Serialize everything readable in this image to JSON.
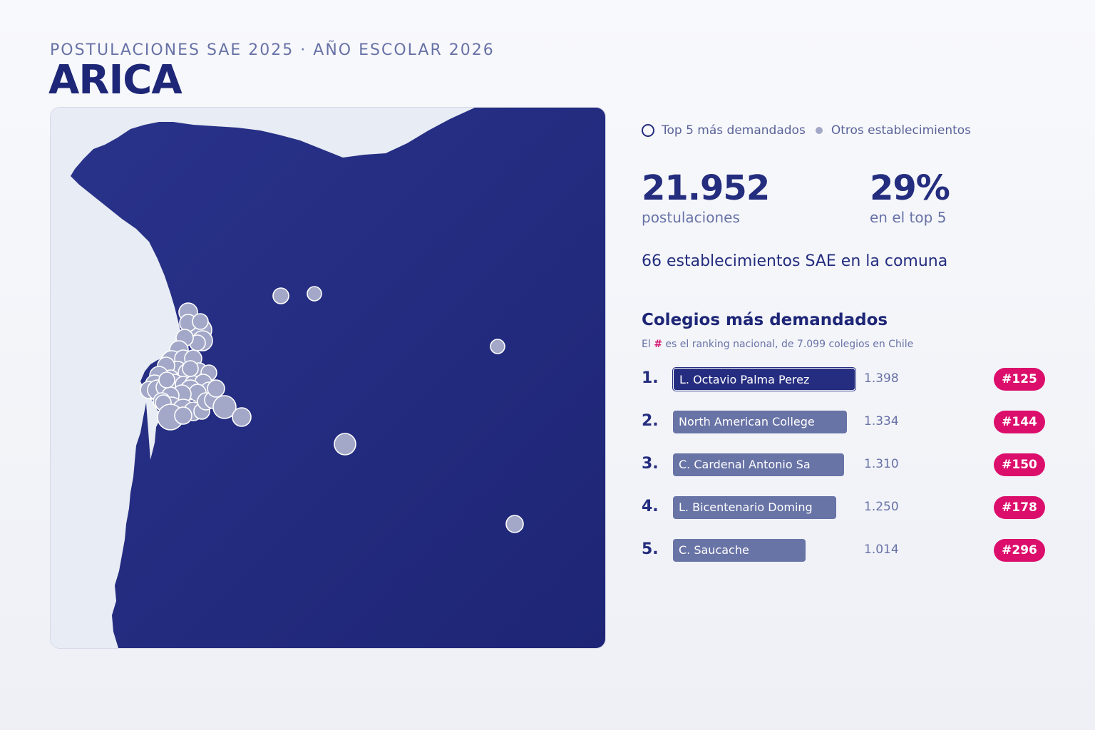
{
  "header": {
    "subtitle": "POSTULACIONES SAE 2025 · AÑO ESCOLAR 2026",
    "title": "ARICA"
  },
  "legend": {
    "top5_label": "Top 5 más demandados",
    "others_label": "Otros establecimientos"
  },
  "stats": {
    "total_value": "21.952",
    "total_label": "postulaciones",
    "share_value": "29%",
    "share_label": "en el top 5",
    "establishments_line": "66 establecimientos SAE en la comuna"
  },
  "ranking": {
    "title": "Colegios más demandados",
    "note_prefix": "El",
    "note_hash": "#",
    "note_suffix": "es el ranking nacional, de 7.099 colegios en Chile"
  },
  "colors": {
    "map_fill": "#252d80",
    "sea": "#e8ecf4",
    "dot": "#a3a8c8",
    "bar_top": "#252d80",
    "bar_other": "#6873a6",
    "badge": "#dc0e6c"
  },
  "chart_data": {
    "type": "bar",
    "title": "Colegios más demandados",
    "categories": [
      "L. Octavio Palma Perez",
      "North American College",
      "C. Cardenal Antonio Sa",
      "L. Bicentenario Doming",
      "C. Saucache"
    ],
    "positions": [
      "1.",
      "2.",
      "3.",
      "4.",
      "5."
    ],
    "values": [
      1398,
      1334,
      1310,
      1250,
      1014
    ],
    "value_labels": [
      "1.398",
      "1.334",
      "1.310",
      "1.250",
      "1.014"
    ],
    "national_rank": [
      "#125",
      "#144",
      "#150",
      "#178",
      "#296"
    ]
  }
}
